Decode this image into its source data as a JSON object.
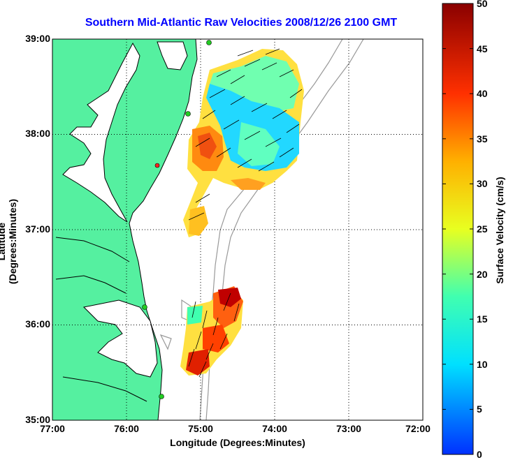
{
  "title": "Southern Mid-Atlantic Raw Velocities 2008/12/26 2100 GMT",
  "xlabel": "Longitude (Degrees:Minutes)",
  "ylabel": "Latitude (Degrees:Minutes)",
  "colorbar_label": "Surface Velocity (cm/s)",
  "x_ticks": [
    "77:00",
    "76:00",
    "75:00",
    "74:00",
    "73:00",
    "72:00"
  ],
  "y_ticks": [
    "39:00",
    "38:00",
    "37:00",
    "36:00",
    "35:00"
  ],
  "colorbar_ticks": [
    "50",
    "45",
    "40",
    "35",
    "30",
    "25",
    "20",
    "15",
    "10",
    "5",
    "0"
  ],
  "colors": {
    "land": "#55f0a0",
    "coast": "#000000",
    "contour": "#999999",
    "station": "#22cc22",
    "title": "#0000ff"
  },
  "chart_data": {
    "type": "heatmap",
    "xlim": [
      -77,
      -72
    ],
    "ylim": [
      35,
      39
    ],
    "clim": [
      0,
      50
    ],
    "units": "cm/s",
    "grid": true,
    "velocity_fields": [
      {
        "region": "north",
        "lon_range": [
          -75.0,
          -73.8
        ],
        "lat_range": [
          37.4,
          38.9
        ],
        "speed_range": [
          5,
          35
        ]
      },
      {
        "region": "south",
        "lon_range": [
          -75.2,
          -74.6
        ],
        "lat_range": [
          35.5,
          36.4
        ],
        "speed_range": [
          15,
          45
        ]
      }
    ]
  }
}
